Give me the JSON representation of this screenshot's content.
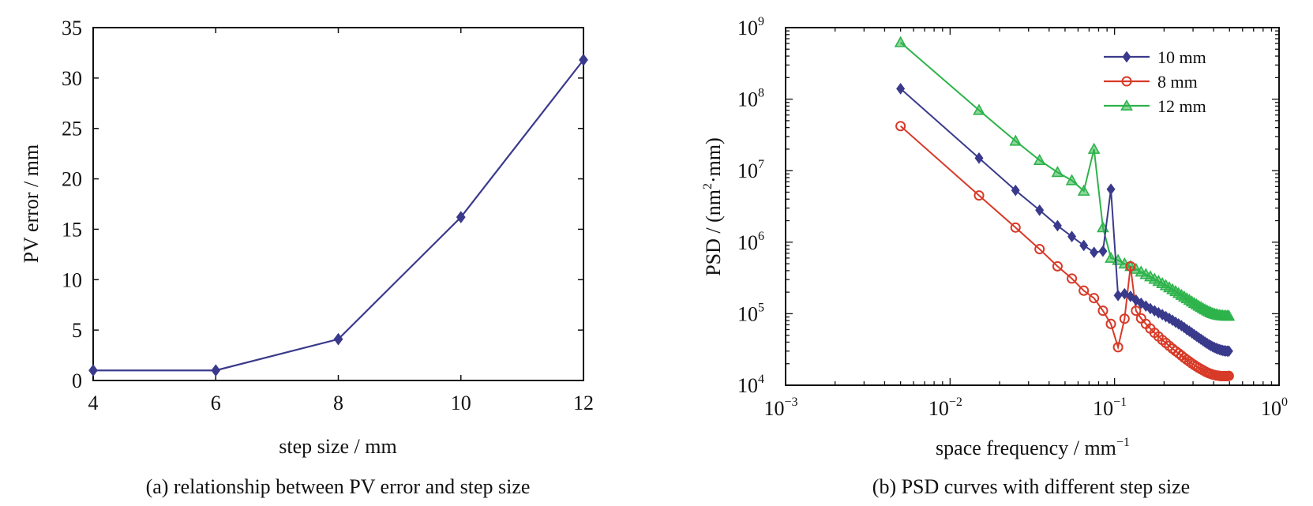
{
  "chart_data": [
    {
      "type": "line",
      "title": "",
      "caption": "(a) relationship between PV error and step size",
      "xlabel": "step size / mm",
      "ylabel": "PV error / mm",
      "xlim": [
        4,
        12
      ],
      "ylim": [
        0,
        35
      ],
      "xticks": [
        4,
        6,
        8,
        10,
        12
      ],
      "yticks": [
        0,
        5,
        10,
        15,
        20,
        25,
        30,
        35
      ],
      "grid": false,
      "series": [
        {
          "color": "#3a3a8c",
          "marker": "diamond",
          "x": [
            4,
            6,
            8,
            10,
            12
          ],
          "y": [
            1.0,
            1.0,
            4.1,
            16.2,
            31.8
          ]
        }
      ]
    },
    {
      "type": "line",
      "title": "",
      "caption": "(b) PSD curves with different step size",
      "xlabel": "space frequency / mm",
      "xlabel_sup": "−1",
      "ylabel": "PSD / (nm",
      "ylabel_sup": "2",
      "ylabel_tail": "·mm)",
      "xscale": "log",
      "yscale": "log",
      "xlim": [
        0.001,
        1
      ],
      "ylim": [
        10000,
        1000000000
      ],
      "xticks": [
        {
          "base": "10",
          "exp": "−3"
        },
        {
          "base": "10",
          "exp": "−2"
        },
        {
          "base": "10",
          "exp": "−1"
        },
        {
          "base": "10",
          "exp": "0"
        }
      ],
      "yticks": [
        {
          "base": "10",
          "exp": "4"
        },
        {
          "base": "10",
          "exp": "5"
        },
        {
          "base": "10",
          "exp": "6"
        },
        {
          "base": "10",
          "exp": "7"
        },
        {
          "base": "10",
          "exp": "8"
        },
        {
          "base": "10",
          "exp": "9"
        }
      ],
      "grid": false,
      "legend_position": "top-right",
      "series": [
        {
          "name": "10 mm",
          "color": "#3a3a8c",
          "marker": "diamond",
          "x": [
            0.005,
            0.015,
            0.025,
            0.035,
            0.045,
            0.055,
            0.065,
            0.075,
            0.085,
            0.095,
            0.105,
            0.115,
            0.125,
            0.135,
            0.145,
            0.155,
            0.165,
            0.175,
            0.185,
            0.195,
            0.205,
            0.215,
            0.225,
            0.235,
            0.245,
            0.255,
            0.265,
            0.275,
            0.285,
            0.295,
            0.305,
            0.315,
            0.325,
            0.335,
            0.345,
            0.355,
            0.365,
            0.375,
            0.385,
            0.395,
            0.405,
            0.415,
            0.425,
            0.435,
            0.445,
            0.455,
            0.465,
            0.475,
            0.485,
            0.495
          ],
          "y": [
            140000000,
            15000000,
            5300000,
            2800000,
            1700000,
            1200000,
            900000,
            720000,
            750000,
            5500000,
            180000,
            190000,
            175000,
            155000,
            140000,
            128000,
            118000,
            110000,
            103000,
            97000,
            91000,
            86000,
            81000,
            76000,
            72000,
            68000,
            64000,
            60000,
            57000,
            54000,
            51000,
            48500,
            46000,
            44000,
            42000,
            40000,
            38500,
            37000,
            35700,
            34600,
            33600,
            32800,
            32100,
            31500,
            31000,
            30600,
            30300,
            30100,
            30000,
            30000
          ]
        },
        {
          "name": "8 mm",
          "color": "#d83a28",
          "marker": "circle",
          "x": [
            0.005,
            0.015,
            0.025,
            0.035,
            0.045,
            0.055,
            0.065,
            0.075,
            0.085,
            0.095,
            0.105,
            0.115,
            0.125,
            0.135,
            0.145,
            0.155,
            0.165,
            0.175,
            0.185,
            0.195,
            0.205,
            0.215,
            0.225,
            0.235,
            0.245,
            0.255,
            0.265,
            0.275,
            0.285,
            0.295,
            0.305,
            0.315,
            0.325,
            0.335,
            0.345,
            0.355,
            0.365,
            0.375,
            0.385,
            0.395,
            0.405,
            0.415,
            0.425,
            0.435,
            0.445,
            0.455,
            0.465,
            0.475,
            0.485,
            0.495
          ],
          "y": [
            42000000,
            4500000,
            1600000,
            800000,
            460000,
            310000,
            210000,
            165000,
            110000,
            72000,
            34000,
            85000,
            460000,
            110000,
            86000,
            72000,
            62000,
            54000,
            48000,
            43000,
            39000,
            35500,
            32500,
            30000,
            28000,
            26000,
            24200,
            22700,
            21400,
            20200,
            19200,
            18300,
            17500,
            16800,
            16200,
            15600,
            15100,
            14700,
            14400,
            14100,
            13900,
            13700,
            13600,
            13500,
            13400,
            13400,
            13400,
            13400,
            13400,
            13500
          ]
        },
        {
          "name": "12 mm",
          "color": "#2db34a",
          "marker": "triangle",
          "x": [
            0.005,
            0.015,
            0.025,
            0.035,
            0.045,
            0.055,
            0.065,
            0.075,
            0.085,
            0.095,
            0.105,
            0.115,
            0.125,
            0.135,
            0.145,
            0.155,
            0.165,
            0.175,
            0.185,
            0.195,
            0.205,
            0.215,
            0.225,
            0.235,
            0.245,
            0.255,
            0.265,
            0.275,
            0.285,
            0.295,
            0.305,
            0.315,
            0.325,
            0.335,
            0.345,
            0.355,
            0.365,
            0.375,
            0.385,
            0.395,
            0.405,
            0.415,
            0.425,
            0.435,
            0.445,
            0.455,
            0.465,
            0.475,
            0.485,
            0.495
          ],
          "y": [
            620000000,
            70000000,
            26000000,
            14000000,
            9500000,
            7300000,
            5200000,
            20000000,
            1600000,
            600000,
            560000,
            500000,
            460000,
            420000,
            385000,
            355000,
            330000,
            305000,
            285000,
            265000,
            248000,
            232000,
            218000,
            205000,
            193000,
            182000,
            172000,
            163000,
            155000,
            147000,
            140000,
            134000,
            128000,
            123000,
            118000,
            114000,
            110000,
            106500,
            103500,
            101000,
            99000,
            97500,
            96200,
            95200,
            94400,
            93800,
            93400,
            93100,
            93000,
            93000
          ]
        }
      ]
    }
  ]
}
